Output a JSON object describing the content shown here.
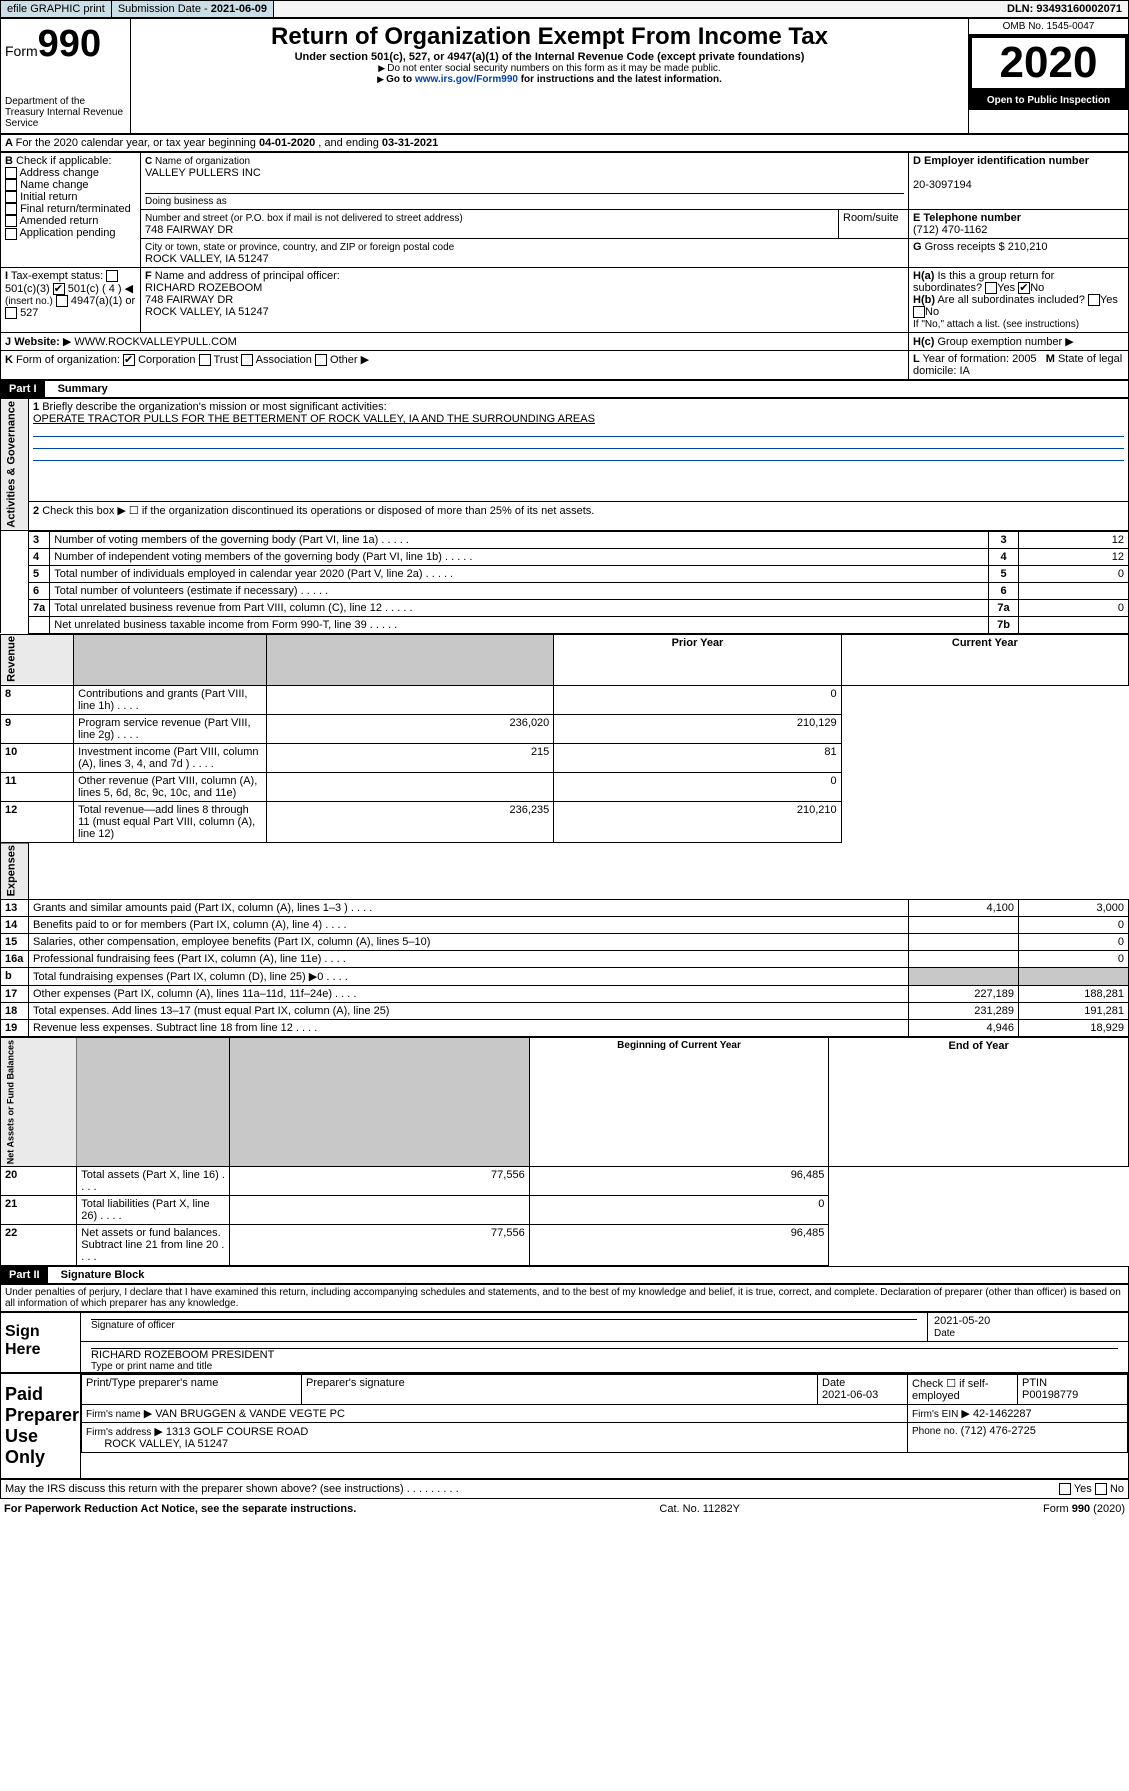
{
  "topbar": {
    "efile": "efile GRAPHIC print",
    "subdate_label": "Submission Date - ",
    "subdate": "2021-06-09",
    "dln_label": "DLN: ",
    "dln": "93493160002071"
  },
  "header": {
    "form_word": "Form",
    "form_no": "990",
    "dept": "Department of the Treasury\nInternal Revenue Service",
    "title": "Return of Organization Exempt From Income Tax",
    "sub1": "Under section 501(c), 527, or 4947(a)(1) of the Internal Revenue Code (except private foundations)",
    "sub2": "Do not enter social security numbers on this form as it may be made public.",
    "sub3_pre": "Go to ",
    "sub3_link": "www.irs.gov/Form990",
    "sub3_post": " for instructions and the latest information.",
    "omb": "OMB No. 1545-0047",
    "year": "2020",
    "open": "Open to Public Inspection"
  },
  "periodA": {
    "text_pre": "For the 2020 calendar year, or tax year beginning ",
    "begin": "04-01-2020",
    "mid": " , and ending ",
    "end": "03-31-2021"
  },
  "boxB": {
    "label": "Check if applicable:",
    "items": [
      "Address change",
      "Name change",
      "Initial return",
      "Final return/terminated",
      "Amended return",
      "Application pending"
    ]
  },
  "boxC": {
    "name_label": "Name of organization",
    "name": "VALLEY PULLERS INC",
    "dba_label": "Doing business as",
    "addr_label": "Number and street (or P.O. box if mail is not delivered to street address)",
    "room_label": "Room/suite",
    "addr": "748 FAIRWAY DR",
    "city_label": "City or town, state or province, country, and ZIP or foreign postal code",
    "city": "ROCK VALLEY, IA  51247"
  },
  "boxD": {
    "label": "Employer identification number",
    "val": "20-3097194"
  },
  "boxE": {
    "label": "Telephone number",
    "val": "(712) 470-1162"
  },
  "boxG": {
    "label": "Gross receipts $",
    "val": "210,210"
  },
  "boxF": {
    "label": "Name and address of principal officer:",
    "line1": "RICHARD ROZEBOOM",
    "line2": "748 FAIRWAY DR",
    "line3": "ROCK VALLEY, IA  51247"
  },
  "boxH": {
    "ha": "Is this a group return for subordinates?",
    "hb": "Are all subordinates included?",
    "hb_note": "If \"No,\" attach a list. (see instructions)",
    "hc": "Group exemption number",
    "yes": "Yes",
    "no": "No"
  },
  "boxI": {
    "label": "Tax-exempt status:",
    "o1": "501(c)(3)",
    "o2": "501(c) ( 4 )",
    "o2b": "(insert no.)",
    "o3": "4947(a)(1) or",
    "o4": "527"
  },
  "boxJ": {
    "label": "Website:",
    "val": "WWW.ROCKVALLEYPULL.COM"
  },
  "boxK": {
    "label": "Form of organization:",
    "corp": "Corporation",
    "trust": "Trust",
    "assoc": "Association",
    "other": "Other"
  },
  "boxL": {
    "label": "Year of formation:",
    "val": "2005"
  },
  "boxM": {
    "label": "State of legal domicile:",
    "val": "IA"
  },
  "part1": {
    "hdr": "Part I",
    "title": "Summary",
    "side_a": "Activities & Governance",
    "side_r": "Revenue",
    "side_e": "Expenses",
    "side_n": "Net Assets or Fund Balances",
    "l1": "Briefly describe the organization's mission or most significant activities:",
    "l1v": "OPERATE TRACTOR PULLS FOR THE BETTERMENT OF ROCK VALLEY, IA AND THE SURROUNDING AREAS",
    "l2": "Check this box ▶ ☐ if the organization discontinued its operations or disposed of more than 25% of its net assets.",
    "prior": "Prior Year",
    "current": "Current Year",
    "beg": "Beginning of Current Year",
    "end": "End of Year",
    "rows_top": [
      {
        "n": "3",
        "t": "Number of voting members of the governing body (Part VI, line 1a)",
        "b": "3",
        "v": "12"
      },
      {
        "n": "4",
        "t": "Number of independent voting members of the governing body (Part VI, line 1b)",
        "b": "4",
        "v": "12"
      },
      {
        "n": "5",
        "t": "Total number of individuals employed in calendar year 2020 (Part V, line 2a)",
        "b": "5",
        "v": "0"
      },
      {
        "n": "6",
        "t": "Total number of volunteers (estimate if necessary)",
        "b": "6",
        "v": ""
      },
      {
        "n": "7a",
        "t": "Total unrelated business revenue from Part VIII, column (C), line 12",
        "b": "7a",
        "v": "0"
      },
      {
        "n": "",
        "t": "Net unrelated business taxable income from Form 990-T, line 39",
        "b": "7b",
        "v": ""
      }
    ],
    "rows_rev": [
      {
        "n": "8",
        "t": "Contributions and grants (Part VIII, line 1h)",
        "p": "",
        "c": "0"
      },
      {
        "n": "9",
        "t": "Program service revenue (Part VIII, line 2g)",
        "p": "236,020",
        "c": "210,129"
      },
      {
        "n": "10",
        "t": "Investment income (Part VIII, column (A), lines 3, 4, and 7d )",
        "p": "215",
        "c": "81"
      },
      {
        "n": "11",
        "t": "Other revenue (Part VIII, column (A), lines 5, 6d, 8c, 9c, 10c, and 11e)",
        "p": "",
        "c": "0"
      },
      {
        "n": "12",
        "t": "Total revenue—add lines 8 through 11 (must equal Part VIII, column (A), line 12)",
        "p": "236,235",
        "c": "210,210"
      }
    ],
    "rows_exp": [
      {
        "n": "13",
        "t": "Grants and similar amounts paid (Part IX, column (A), lines 1–3 )",
        "p": "4,100",
        "c": "3,000"
      },
      {
        "n": "14",
        "t": "Benefits paid to or for members (Part IX, column (A), line 4)",
        "p": "",
        "c": "0"
      },
      {
        "n": "15",
        "t": "Salaries, other compensation, employee benefits (Part IX, column (A), lines 5–10)",
        "p": "",
        "c": "0"
      },
      {
        "n": "16a",
        "t": "Professional fundraising fees (Part IX, column (A), line 11e)",
        "p": "",
        "c": "0"
      },
      {
        "n": "b",
        "t": "Total fundraising expenses (Part IX, column (D), line 25) ▶0",
        "p": "grey",
        "c": "grey"
      },
      {
        "n": "17",
        "t": "Other expenses (Part IX, column (A), lines 11a–11d, 11f–24e)",
        "p": "227,189",
        "c": "188,281"
      },
      {
        "n": "18",
        "t": "Total expenses. Add lines 13–17 (must equal Part IX, column (A), line 25)",
        "p": "231,289",
        "c": "191,281"
      },
      {
        "n": "19",
        "t": "Revenue less expenses. Subtract line 18 from line 12",
        "p": "4,946",
        "c": "18,929"
      }
    ],
    "rows_net": [
      {
        "n": "20",
        "t": "Total assets (Part X, line 16)",
        "p": "77,556",
        "c": "96,485"
      },
      {
        "n": "21",
        "t": "Total liabilities (Part X, line 26)",
        "p": "",
        "c": "0"
      },
      {
        "n": "22",
        "t": "Net assets or fund balances. Subtract line 21 from line 20",
        "p": "77,556",
        "c": "96,485"
      }
    ]
  },
  "part2": {
    "hdr": "Part II",
    "title": "Signature Block",
    "decl": "Under penalties of perjury, I declare that I have examined this return, including accompanying schedules and statements, and to the best of my knowledge and belief, it is true, correct, and complete. Declaration of preparer (other than officer) is based on all information of which preparer has any knowledge.",
    "sign_here": "Sign Here",
    "sig_officer": "Signature of officer",
    "date1": "2021-05-20",
    "date_label": "Date",
    "officer_name": "RICHARD ROZEBOOM  PRESIDENT",
    "type_name": "Type or print name and title",
    "paid": "Paid Preparer Use Only",
    "prep_name_h": "Print/Type preparer's name",
    "prep_sig_h": "Preparer's signature",
    "date_h": "Date",
    "date2": "2021-06-03",
    "check_self": "Check ☐ if self-employed",
    "ptin_h": "PTIN",
    "ptin": "P00198779",
    "firm_name_h": "Firm's name",
    "firm_name": "VAN BRUGGEN & VANDE VEGTE PC",
    "firm_ein_h": "Firm's EIN",
    "firm_ein": "42-1462287",
    "firm_addr_h": "Firm's address",
    "firm_addr1": "1313 GOLF COURSE ROAD",
    "firm_addr2": "ROCK VALLEY, IA  51247",
    "phone_h": "Phone no.",
    "phone": "(712) 476-2725",
    "may_discuss": "May the IRS discuss this return with the preparer shown above? (see instructions)"
  },
  "footer": {
    "left": "For Paperwork Reduction Act Notice, see the separate instructions.",
    "mid": "Cat. No. 11282Y",
    "right": "Form 990 (2020)"
  }
}
